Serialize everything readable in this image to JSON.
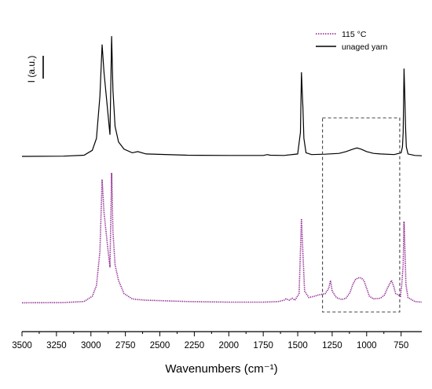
{
  "chart_data": {
    "type": "line",
    "title": "",
    "xlabel": "Wavenumbers (cm⁻¹)",
    "ylabel": "I (a.u.)",
    "xlim": [
      3500,
      600
    ],
    "x_reversed": true,
    "x_ticks": [
      3500,
      3250,
      3000,
      2750,
      2500,
      2250,
      2000,
      1750,
      1500,
      1250,
      1000,
      750
    ],
    "x_tick_labels": [
      "3500",
      "3250",
      "3000",
      "2750",
      "2500",
      "2250",
      "2000",
      "1750",
      "1500",
      "1250",
      "1000",
      "750"
    ],
    "legend_position": "top-right",
    "grid": false,
    "highlight_box": {
      "x_range": [
        1320,
        760
      ],
      "style": "dashed"
    },
    "series": [
      {
        "name": "115 °C",
        "color": "#8B1A8B",
        "dash": "dotted",
        "points": [
          [
            3500,
            0.01
          ],
          [
            3200,
            0.012
          ],
          [
            3050,
            0.02
          ],
          [
            2990,
            0.06
          ],
          [
            2960,
            0.14
          ],
          [
            2935,
            0.4
          ],
          [
            2919,
            0.95
          ],
          [
            2905,
            0.7
          ],
          [
            2880,
            0.45
          ],
          [
            2862,
            0.28
          ],
          [
            2850,
            1.0
          ],
          [
            2840,
            0.55
          ],
          [
            2825,
            0.3
          ],
          [
            2800,
            0.18
          ],
          [
            2760,
            0.08
          ],
          [
            2700,
            0.04
          ],
          [
            2660,
            0.035
          ],
          [
            2600,
            0.03
          ],
          [
            2300,
            0.02
          ],
          [
            2000,
            0.015
          ],
          [
            1750,
            0.015
          ],
          [
            1640,
            0.02
          ],
          [
            1600,
            0.03
          ],
          [
            1585,
            0.04
          ],
          [
            1560,
            0.03
          ],
          [
            1540,
            0.045
          ],
          [
            1520,
            0.03
          ],
          [
            1490,
            0.08
          ],
          [
            1473,
            0.65
          ],
          [
            1468,
            0.52
          ],
          [
            1462,
            0.38
          ],
          [
            1450,
            0.1
          ],
          [
            1420,
            0.05
          ],
          [
            1380,
            0.06
          ],
          [
            1350,
            0.07
          ],
          [
            1300,
            0.08
          ],
          [
            1275,
            0.12
          ],
          [
            1262,
            0.18
          ],
          [
            1250,
            0.1
          ],
          [
            1220,
            0.05
          ],
          [
            1180,
            0.035
          ],
          [
            1150,
            0.045
          ],
          [
            1120,
            0.09
          ],
          [
            1100,
            0.15
          ],
          [
            1080,
            0.19
          ],
          [
            1060,
            0.2
          ],
          [
            1040,
            0.2
          ],
          [
            1020,
            0.18
          ],
          [
            1000,
            0.12
          ],
          [
            980,
            0.06
          ],
          [
            950,
            0.04
          ],
          [
            900,
            0.045
          ],
          [
            870,
            0.07
          ],
          [
            850,
            0.12
          ],
          [
            820,
            0.18
          ],
          [
            805,
            0.14
          ],
          [
            790,
            0.08
          ],
          [
            770,
            0.07
          ],
          [
            755,
            0.06
          ],
          [
            745,
            0.15
          ],
          [
            735,
            0.3
          ],
          [
            729,
            0.63
          ],
          [
            720,
            0.35
          ],
          [
            715,
            0.15
          ],
          [
            700,
            0.05
          ],
          [
            650,
            0.02
          ],
          [
            600,
            0.015
          ]
        ]
      },
      {
        "name": "unaged yarn",
        "color": "#000000",
        "dash": "solid",
        "points": [
          [
            3500,
            0.0
          ],
          [
            3200,
            0.002
          ],
          [
            3050,
            0.01
          ],
          [
            2990,
            0.05
          ],
          [
            2960,
            0.15
          ],
          [
            2935,
            0.5
          ],
          [
            2919,
            0.93
          ],
          [
            2905,
            0.7
          ],
          [
            2880,
            0.4
          ],
          [
            2862,
            0.18
          ],
          [
            2850,
            1.0
          ],
          [
            2840,
            0.55
          ],
          [
            2825,
            0.25
          ],
          [
            2800,
            0.12
          ],
          [
            2760,
            0.06
          ],
          [
            2700,
            0.03
          ],
          [
            2660,
            0.04
          ],
          [
            2600,
            0.02
          ],
          [
            2300,
            0.01
          ],
          [
            2000,
            0.008
          ],
          [
            1750,
            0.008
          ],
          [
            1720,
            0.015
          ],
          [
            1700,
            0.01
          ],
          [
            1600,
            0.008
          ],
          [
            1500,
            0.02
          ],
          [
            1480,
            0.2
          ],
          [
            1473,
            0.7
          ],
          [
            1468,
            0.55
          ],
          [
            1462,
            0.4
          ],
          [
            1455,
            0.15
          ],
          [
            1440,
            0.03
          ],
          [
            1400,
            0.015
          ],
          [
            1300,
            0.018
          ],
          [
            1200,
            0.025
          ],
          [
            1150,
            0.04
          ],
          [
            1100,
            0.06
          ],
          [
            1070,
            0.07
          ],
          [
            1040,
            0.06
          ],
          [
            1000,
            0.04
          ],
          [
            950,
            0.025
          ],
          [
            900,
            0.02
          ],
          [
            800,
            0.015
          ],
          [
            750,
            0.03
          ],
          [
            740,
            0.08
          ],
          [
            735,
            0.2
          ],
          [
            729,
            0.73
          ],
          [
            723,
            0.5
          ],
          [
            718,
            0.25
          ],
          [
            712,
            0.08
          ],
          [
            700,
            0.02
          ],
          [
            650,
            0.008
          ],
          [
            600,
            0.005
          ]
        ]
      }
    ]
  }
}
